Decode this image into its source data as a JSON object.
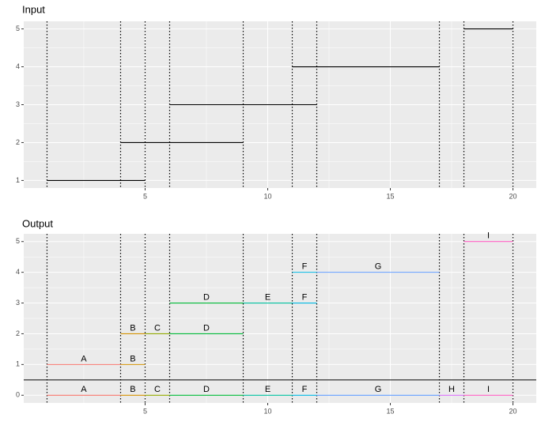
{
  "chart_data": [
    {
      "type": "segment",
      "title": "Input",
      "xlim": [
        0.05,
        20.95
      ],
      "xticks": [
        5,
        10,
        15,
        20
      ],
      "ylim": [
        0.8,
        5.2
      ],
      "yticks": [
        1,
        2,
        3,
        4,
        5
      ],
      "grid": true,
      "vlines": [
        1,
        4,
        5,
        6,
        9,
        11,
        12,
        17,
        18,
        20
      ],
      "segments": [
        {
          "y": 1,
          "x_start": 1,
          "x_end": 5,
          "color": "#000000"
        },
        {
          "y": 2,
          "x_start": 4,
          "x_end": 9,
          "color": "#000000"
        },
        {
          "y": 3,
          "x_start": 6,
          "x_end": 12,
          "color": "#000000"
        },
        {
          "y": 4,
          "x_start": 11,
          "x_end": 17,
          "color": "#000000"
        },
        {
          "y": 5,
          "x_start": 18,
          "x_end": 20,
          "color": "#000000"
        }
      ]
    },
    {
      "type": "segment",
      "title": "Output",
      "xlim": [
        0.05,
        20.95
      ],
      "xticks": [
        5,
        10,
        15,
        20
      ],
      "ylim": [
        -0.25,
        5.25
      ],
      "yticks": [
        0,
        1,
        2,
        3,
        4,
        5
      ],
      "grid": true,
      "vlines": [
        1,
        4,
        5,
        6,
        9,
        11,
        12,
        17,
        18,
        20
      ],
      "hline": 0.5,
      "segments": [
        {
          "label": "A",
          "y": 1,
          "x_start": 1,
          "x_end": 4,
          "color": "#F8766D"
        },
        {
          "label": "B",
          "y": 1,
          "x_start": 4,
          "x_end": 5,
          "color": "#D39200"
        },
        {
          "label": "B",
          "y": 2,
          "x_start": 4,
          "x_end": 5,
          "color": "#D39200"
        },
        {
          "label": "C",
          "y": 2,
          "x_start": 5,
          "x_end": 6,
          "color": "#93AA00"
        },
        {
          "label": "D",
          "y": 2,
          "x_start": 6,
          "x_end": 9,
          "color": "#00BA38"
        },
        {
          "label": "D",
          "y": 3,
          "x_start": 6,
          "x_end": 9,
          "color": "#00BA38"
        },
        {
          "label": "E",
          "y": 3,
          "x_start": 9,
          "x_end": 11,
          "color": "#00C19F"
        },
        {
          "label": "F",
          "y": 3,
          "x_start": 11,
          "x_end": 12,
          "color": "#00B9E3"
        },
        {
          "label": "F",
          "y": 4,
          "x_start": 11,
          "x_end": 12,
          "color": "#00B9E3"
        },
        {
          "label": "G",
          "y": 4,
          "x_start": 12,
          "x_end": 17,
          "color": "#619CFF"
        },
        {
          "label": "I",
          "y": 5,
          "x_start": 18,
          "x_end": 20,
          "color": "#FF61C3"
        },
        {
          "label": "A",
          "y": 0,
          "x_start": 1,
          "x_end": 4,
          "color": "#F8766D"
        },
        {
          "label": "B",
          "y": 0,
          "x_start": 4,
          "x_end": 5,
          "color": "#D39200"
        },
        {
          "label": "C",
          "y": 0,
          "x_start": 5,
          "x_end": 6,
          "color": "#93AA00"
        },
        {
          "label": "D",
          "y": 0,
          "x_start": 6,
          "x_end": 9,
          "color": "#00BA38"
        },
        {
          "label": "E",
          "y": 0,
          "x_start": 9,
          "x_end": 11,
          "color": "#00C19F"
        },
        {
          "label": "F",
          "y": 0,
          "x_start": 11,
          "x_end": 12,
          "color": "#00B9E3"
        },
        {
          "label": "G",
          "y": 0,
          "x_start": 12,
          "x_end": 17,
          "color": "#619CFF"
        },
        {
          "label": "H",
          "y": 0,
          "x_start": 17,
          "x_end": 18,
          "color": "#DB72FB"
        },
        {
          "label": "I",
          "y": 0,
          "x_start": 18,
          "x_end": 20,
          "color": "#FF61C3"
        }
      ]
    }
  ]
}
